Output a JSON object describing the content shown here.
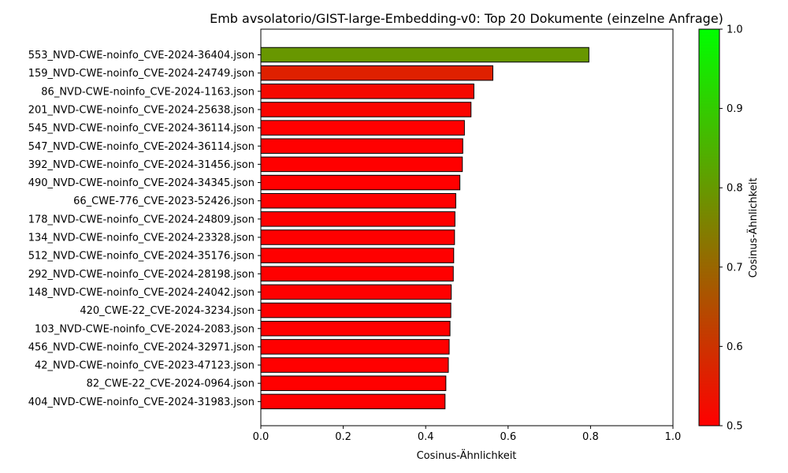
{
  "chart_data": {
    "type": "bar",
    "orientation": "horizontal",
    "title": "Emb avsolatorio/GIST-large-Embedding-v0: Top 20 Dokumente (einzelne Anfrage)",
    "xlabel": "Cosinus-Ähnlichkeit",
    "ylabel": "",
    "xlim": [
      0,
      1.0
    ],
    "xticks": [
      "0.0",
      "0.2",
      "0.4",
      "0.6",
      "0.8",
      "1.0"
    ],
    "grid": false,
    "categories": [
      "553_NVD-CWE-noinfo_CVE-2024-36404.json",
      "159_NVD-CWE-noinfo_CVE-2024-24749.json",
      "86_NVD-CWE-noinfo_CVE-2024-1163.json",
      "201_NVD-CWE-noinfo_CVE-2024-25638.json",
      "545_NVD-CWE-noinfo_CVE-2024-36114.json",
      "547_NVD-CWE-noinfo_CVE-2024-36114.json",
      "392_NVD-CWE-noinfo_CVE-2024-31456.json",
      "490_NVD-CWE-noinfo_CVE-2024-34345.json",
      "66_CWE-776_CVE-2023-52426.json",
      "178_NVD-CWE-noinfo_CVE-2024-24809.json",
      "134_NVD-CWE-noinfo_CVE-2024-23328.json",
      "512_NVD-CWE-noinfo_CVE-2024-35176.json",
      "292_NVD-CWE-noinfo_CVE-2024-28198.json",
      "148_NVD-CWE-noinfo_CVE-2024-24042.json",
      "420_CWE-22_CVE-2024-3234.json",
      "103_NVD-CWE-noinfo_CVE-2024-2083.json",
      "456_NVD-CWE-noinfo_CVE-2024-32971.json",
      "42_NVD-CWE-noinfo_CVE-2023-47123.json",
      "82_CWE-22_CVE-2024-0964.json",
      "404_NVD-CWE-noinfo_CVE-2024-31983.json"
    ],
    "values": [
      0.796,
      0.563,
      0.517,
      0.51,
      0.494,
      0.49,
      0.489,
      0.483,
      0.473,
      0.471,
      0.47,
      0.468,
      0.467,
      0.462,
      0.461,
      0.459,
      0.457,
      0.455,
      0.449,
      0.447
    ],
    "colorbar": {
      "label": "Cosinus-Ähnlichkeit",
      "range": [
        0.5,
        1.0
      ],
      "ticks": [
        "0.5",
        "0.6",
        "0.7",
        "0.8",
        "0.9",
        "1.0"
      ],
      "low_color": "#ff0000",
      "high_color": "#00ff00"
    },
    "bar_edge_color": "#000000"
  }
}
